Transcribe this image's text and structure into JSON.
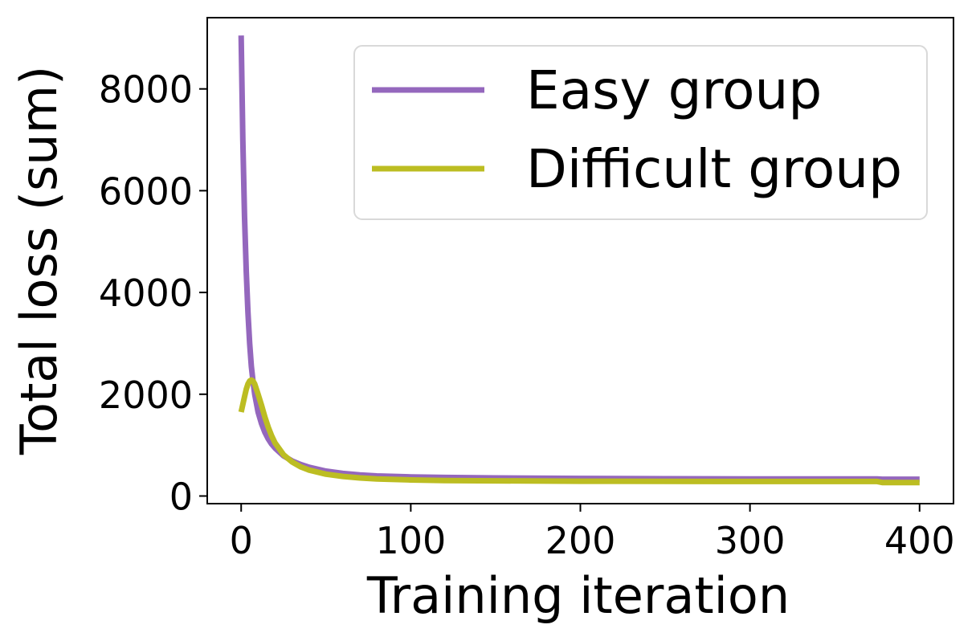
{
  "chart_data": {
    "type": "line",
    "title": "",
    "xlabel": "Training iteration",
    "ylabel": "Total loss (sum)",
    "xlim": [
      -20,
      420
    ],
    "ylim": [
      -150,
      9400
    ],
    "xticks": [
      0,
      100,
      200,
      300,
      400
    ],
    "xtick_labels": [
      "0",
      "100",
      "200",
      "300",
      "400"
    ],
    "yticks": [
      0,
      2000,
      4000,
      6000,
      8000
    ],
    "ytick_labels": [
      "0",
      "2000",
      "4000",
      "6000",
      "8000"
    ],
    "grid": false,
    "legend_position": "upper-right",
    "x": [
      0,
      1,
      2,
      3,
      4,
      5,
      6,
      7,
      8,
      10,
      12,
      14,
      16,
      18,
      20,
      25,
      30,
      35,
      40,
      50,
      60,
      70,
      80,
      100,
      120,
      150,
      200,
      250,
      300,
      350,
      375,
      378,
      400
    ],
    "series": [
      {
        "name": "Easy group",
        "color": "#9467bd",
        "values": [
          9050,
          7000,
          5500,
          4400,
          3600,
          3000,
          2550,
          2250,
          2000,
          1650,
          1420,
          1250,
          1120,
          1020,
          940,
          790,
          690,
          620,
          565,
          490,
          445,
          415,
          395,
          375,
          365,
          355,
          345,
          340,
          335,
          335,
          335,
          330,
          330
        ]
      },
      {
        "name": "Difficult group",
        "color": "#bcbd22",
        "values": [
          1650,
          1800,
          1950,
          2100,
          2200,
          2260,
          2280,
          2260,
          2200,
          2000,
          1780,
          1550,
          1350,
          1180,
          1040,
          810,
          670,
          575,
          510,
          430,
          385,
          355,
          335,
          315,
          305,
          298,
          290,
          287,
          285,
          285,
          285,
          265,
          265
        ]
      }
    ]
  }
}
